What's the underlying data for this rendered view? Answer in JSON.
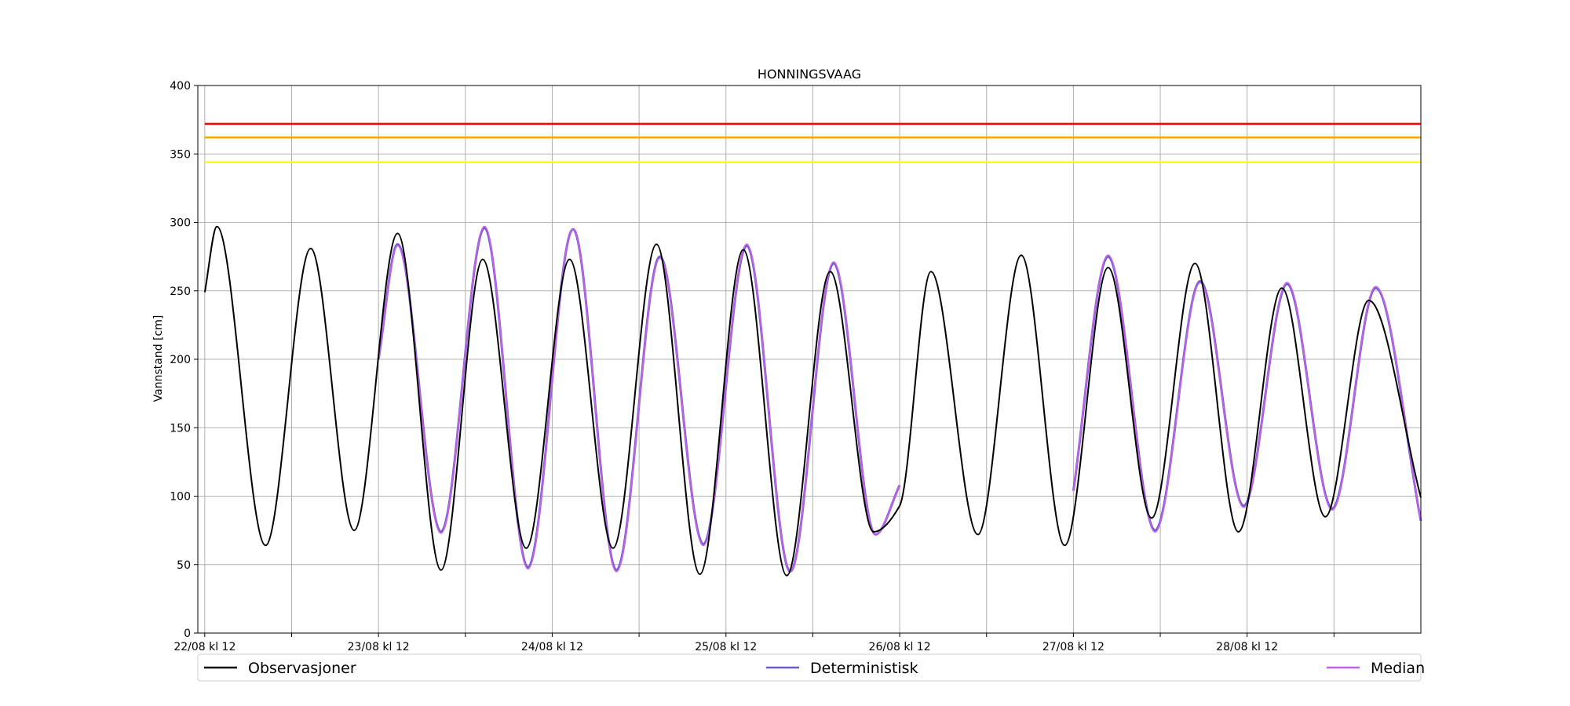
{
  "chart_data": {
    "type": "line",
    "title": "HONNINGSVAAG",
    "xlabel": "",
    "ylabel": "Vannstand [cm]",
    "ylim": [
      0,
      400
    ],
    "yticks": [
      0,
      50,
      100,
      150,
      200,
      250,
      300,
      350,
      400
    ],
    "xlim": [
      -0.04,
      7.0
    ],
    "xticks": [
      {
        "pos": 0,
        "label": "22/08 kl 12"
      },
      {
        "pos": 0.5,
        "label": ""
      },
      {
        "pos": 1,
        "label": "23/08 kl 12"
      },
      {
        "pos": 1.5,
        "label": ""
      },
      {
        "pos": 2,
        "label": "24/08 kl 12"
      },
      {
        "pos": 2.5,
        "label": ""
      },
      {
        "pos": 3,
        "label": "25/08 kl 12"
      },
      {
        "pos": 3.5,
        "label": ""
      },
      {
        "pos": 4,
        "label": "26/08 kl 12"
      },
      {
        "pos": 4.5,
        "label": ""
      },
      {
        "pos": 5,
        "label": "27/08 kl 12"
      },
      {
        "pos": 5.5,
        "label": ""
      },
      {
        "pos": 6,
        "label": "28/08 kl 12"
      },
      {
        "pos": 6.5,
        "label": ""
      }
    ],
    "grid": true,
    "legend_position": "bottom",
    "thresholds": [
      {
        "value": 372,
        "color": "#ff0000"
      },
      {
        "value": 362,
        "color": "#ffa500"
      },
      {
        "value": 344,
        "color": "#ffff00"
      }
    ],
    "series": [
      {
        "name": "Observasjoner",
        "color": "#000000",
        "x": [
          0,
          0.07,
          0.35,
          0.61,
          0.86,
          1.11,
          1.36,
          1.6,
          1.85,
          2.1,
          2.35,
          2.6,
          2.85,
          3.1,
          3.35,
          3.6,
          3.85,
          4.0,
          4.18,
          4.45,
          4.7,
          4.95,
          5.2,
          5.45,
          5.7,
          5.95,
          6.2,
          6.45,
          6.7,
          7.0
        ],
        "y": [
          249,
          297,
          64,
          281,
          75,
          292,
          46,
          273,
          62,
          273,
          62,
          284,
          43,
          280,
          42,
          264,
          74,
          93,
          264,
          72,
          276,
          64,
          267,
          84,
          270,
          74,
          252,
          85,
          243,
          99
        ]
      },
      {
        "name": "Deterministisk",
        "color": "#6a5acd",
        "segments": [
          {
            "x": [
              1.0,
              1.11,
              1.36,
              1.61,
              1.86,
              2.12,
              2.37,
              2.62,
              2.87,
              3.12,
              3.37,
              3.62,
              3.86,
              4.0
            ],
            "y": [
              200,
              284,
              74,
              296,
              48,
              295,
              46,
              275,
              65,
              283,
              45,
              270,
              72,
              108
            ]
          },
          {
            "x": [
              5.0,
              5.2,
              5.47,
              5.73,
              5.98,
              6.23,
              6.49,
              6.74,
              7.0
            ],
            "y": [
              104,
              275,
              75,
              257,
              93,
              255,
              91,
              252,
              82
            ]
          }
        ]
      },
      {
        "name": "Median",
        "color": "#c162e6",
        "segments": [
          {
            "x": [
              1.0,
              1.11,
              1.36,
              1.61,
              1.86,
              2.12,
              2.37,
              2.62,
              2.87,
              3.12,
              3.37,
              3.62,
              3.86,
              4.0
            ],
            "y": [
              200,
              283,
              73,
              297,
              47,
              295,
              45,
              274,
              64,
              284,
              45,
              271,
              72,
              108
            ]
          },
          {
            "x": [
              5.0,
              5.2,
              5.47,
              5.73,
              5.98,
              6.23,
              6.49,
              6.74,
              7.0
            ],
            "y": [
              104,
              276,
              74,
              256,
              92,
              256,
              90,
              253,
              82
            ]
          }
        ]
      }
    ]
  }
}
